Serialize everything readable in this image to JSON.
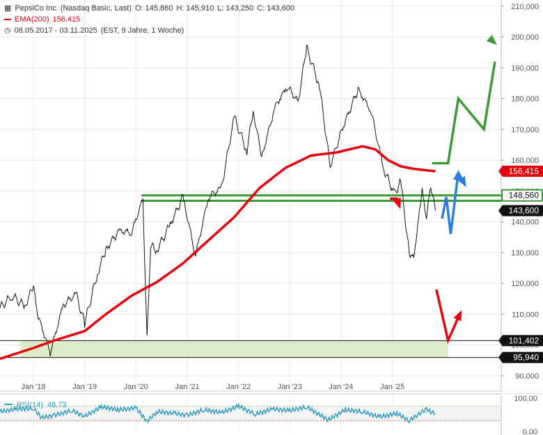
{
  "header": {
    "title": "PepsiCo Inc. (Nasdaq Basic, Last)",
    "open": "O: 145,860",
    "high": "H: 145,910",
    "low": "L: 143,250",
    "close": "C: 143,600",
    "ema_name": "EMA(200)",
    "ema_value": "156,415",
    "range": "08.05.2017 - 03.11.2025",
    "range_info": "(EST, 9 Jahre, 1 Woche)"
  },
  "colors": {
    "price": "#111111",
    "ema": "#e8000f",
    "green": "#3a9a35",
    "blue": "#2a7fde",
    "red_arrow": "#e8000f",
    "zone": "#dcebc9",
    "rsi": "#2d9bc4"
  },
  "chart_data": {
    "type": "line",
    "yrange": [
      85000,
      212000
    ],
    "yticks": [
      90000,
      100000,
      110000,
      120000,
      130000,
      140000,
      150000,
      160000,
      170000,
      180000,
      190000,
      200000,
      210000
    ],
    "ytick_labels": [
      "90,000",
      "100,000",
      "110,000",
      "120,000",
      "130,000",
      "140,000",
      "150,000",
      "160,000",
      "170,000",
      "180,000",
      "190,000",
      "200,000",
      "210,000"
    ],
    "xticks": [
      "2018-01-01",
      "2019-01-01",
      "2020-01-01",
      "2021-01-01",
      "2022-01-01",
      "2023-01-01",
      "2024-01-01",
      "2025-01-01"
    ],
    "xtick_labels": [
      "Jan '18",
      "Jan '19",
      "Jan '20",
      "Jan '21",
      "Jan '22",
      "Jan '23",
      "Jan '24",
      "Jan '25"
    ],
    "price_series": {
      "name": "PepsiCo Inc.",
      "points": [
        [
          "2017-05-08",
          112000
        ],
        [
          "2017-08-01",
          116000
        ],
        [
          "2017-11-01",
          112500
        ],
        [
          "2018-01-01",
          119000
        ],
        [
          "2018-02-05",
          109000
        ],
        [
          "2018-05-01",
          97500
        ],
        [
          "2018-08-01",
          113000
        ],
        [
          "2018-11-01",
          116500
        ],
        [
          "2019-01-01",
          107000
        ],
        [
          "2019-04-01",
          123000
        ],
        [
          "2019-06-01",
          131000
        ],
        [
          "2019-09-01",
          137000
        ],
        [
          "2019-12-01",
          136500
        ],
        [
          "2020-02-20",
          147500
        ],
        [
          "2020-03-20",
          101500
        ],
        [
          "2020-04-15",
          132000
        ],
        [
          "2020-06-01",
          131000
        ],
        [
          "2020-09-01",
          139000
        ],
        [
          "2020-12-01",
          148000
        ],
        [
          "2021-03-01",
          129000
        ],
        [
          "2021-06-01",
          148000
        ],
        [
          "2021-09-01",
          151000
        ],
        [
          "2021-12-01",
          174000
        ],
        [
          "2022-03-01",
          163000
        ],
        [
          "2022-04-15",
          176000
        ],
        [
          "2022-06-15",
          161000
        ],
        [
          "2022-09-15",
          177000
        ],
        [
          "2022-12-15",
          184000
        ],
        [
          "2023-03-01",
          179000
        ],
        [
          "2023-05-01",
          196500
        ],
        [
          "2023-08-01",
          184000
        ],
        [
          "2023-10-15",
          158000
        ],
        [
          "2024-01-01",
          169000
        ],
        [
          "2024-05-01",
          183000
        ],
        [
          "2024-08-01",
          176000
        ],
        [
          "2024-11-01",
          157000
        ],
        [
          "2025-01-15",
          149000
        ],
        [
          "2025-03-01",
          153000
        ],
        [
          "2025-05-01",
          130000
        ],
        [
          "2025-06-01",
          128000
        ],
        [
          "2025-08-01",
          150000
        ],
        [
          "2025-09-01",
          141000
        ],
        [
          "2025-10-01",
          152000
        ],
        [
          "2025-11-03",
          143600
        ]
      ]
    },
    "ema_series": {
      "name": "EMA(200)",
      "points": [
        [
          "2017-05-08",
          95500
        ],
        [
          "2018-01-01",
          99000
        ],
        [
          "2018-06-01",
          101500
        ],
        [
          "2019-01-01",
          104500
        ],
        [
          "2019-06-01",
          110000
        ],
        [
          "2019-12-01",
          116000
        ],
        [
          "2020-06-01",
          120500
        ],
        [
          "2020-12-01",
          126500
        ],
        [
          "2021-06-01",
          134000
        ],
        [
          "2021-12-01",
          141500
        ],
        [
          "2022-06-01",
          151000
        ],
        [
          "2022-12-01",
          157500
        ],
        [
          "2023-06-01",
          161500
        ],
        [
          "2023-12-01",
          162500
        ],
        [
          "2024-06-01",
          164500
        ],
        [
          "2024-09-01",
          163500
        ],
        [
          "2024-12-01",
          160000
        ],
        [
          "2025-03-01",
          158000
        ],
        [
          "2025-06-01",
          157200
        ],
        [
          "2025-09-01",
          156700
        ],
        [
          "2025-11-03",
          156415
        ]
      ]
    },
    "horizontal_levels": [
      {
        "value": 148560,
        "label": "148,560",
        "style": "green",
        "start": "2020-02-10"
      },
      {
        "value": 146800,
        "style": "green",
        "start": "2020-02-10"
      },
      {
        "value": 101402,
        "label": "101,402",
        "style": "black",
        "start": "2017-05-08"
      },
      {
        "value": 95940,
        "label": "95,940",
        "style": "black",
        "start": "2017-05-08"
      }
    ],
    "support_zone": {
      "from": 95940,
      "to": 101402,
      "start": "2017-10-01",
      "end": "2026-02-01"
    },
    "price_badges": [
      {
        "value": 156415,
        "label": "156,415",
        "style": "red"
      },
      {
        "value": 148560,
        "label": "148,560",
        "style": "green"
      },
      {
        "value": 143600,
        "label": "143,600",
        "style": "black"
      }
    ],
    "scenario_paths": [
      {
        "color": "green",
        "points": [
          [
            "2025-10-10",
            159000
          ],
          [
            "2026-02-01",
            159000
          ],
          [
            "2026-04-15",
            180000
          ],
          [
            "2026-10-15",
            170000
          ],
          [
            "2027-01-01",
            192000
          ]
        ],
        "arrow": false
      },
      {
        "color": "green",
        "points": [
          [
            "2026-12-20",
            198500
          ],
          [
            "2027-01-01",
            198000
          ]
        ],
        "arrow": true
      },
      {
        "color": "blue",
        "points": [
          [
            "2025-12-20",
            141000
          ],
          [
            "2026-01-20",
            148000
          ],
          [
            "2026-02-20",
            136000
          ],
          [
            "2026-04-15",
            156000
          ]
        ],
        "arrow": true
      },
      {
        "color": "blue",
        "points": [
          [
            "2026-04-15",
            156000
          ],
          [
            "2026-06-01",
            152000
          ]
        ],
        "arrow": true
      },
      {
        "color": "red_arrow",
        "points": [
          [
            "2024-12-15",
            147500
          ],
          [
            "2025-02-01",
            147500
          ],
          [
            "2025-02-20",
            145000
          ]
        ],
        "arrow": true
      },
      {
        "color": "red_arrow",
        "points": [
          [
            "2025-11-10",
            118000
          ],
          [
            "2026-02-01",
            101500
          ],
          [
            "2026-05-01",
            110500
          ]
        ],
        "arrow": true
      }
    ],
    "rsi": {
      "name": "RSI(14)",
      "value": "48,73",
      "yrange": [
        0,
        100
      ],
      "ytick_labels": [
        "100,00",
        "0,00"
      ],
      "bands": [
        30,
        70
      ],
      "points": [
        [
          "2017-05-08",
          55
        ],
        [
          "2017-09-01",
          62
        ],
        [
          "2018-01-01",
          64
        ],
        [
          "2018-03-01",
          38
        ],
        [
          "2018-06-01",
          45
        ],
        [
          "2018-10-01",
          58
        ],
        [
          "2019-01-01",
          42
        ],
        [
          "2019-05-01",
          68
        ],
        [
          "2019-09-01",
          60
        ],
        [
          "2020-01-01",
          65
        ],
        [
          "2020-03-20",
          28
        ],
        [
          "2020-06-01",
          55
        ],
        [
          "2020-10-01",
          50
        ],
        [
          "2021-01-01",
          45
        ],
        [
          "2021-05-01",
          60
        ],
        [
          "2021-09-01",
          52
        ],
        [
          "2022-01-01",
          70
        ],
        [
          "2022-05-01",
          48
        ],
        [
          "2022-09-01",
          62
        ],
        [
          "2023-01-01",
          58
        ],
        [
          "2023-05-01",
          68
        ],
        [
          "2023-10-01",
          32
        ],
        [
          "2024-02-01",
          60
        ],
        [
          "2024-06-01",
          55
        ],
        [
          "2024-10-01",
          40
        ],
        [
          "2025-02-01",
          50
        ],
        [
          "2025-05-01",
          30
        ],
        [
          "2025-07-01",
          46
        ],
        [
          "2025-09-01",
          62
        ],
        [
          "2025-10-01",
          54
        ],
        [
          "2025-11-03",
          48.73
        ]
      ]
    }
  }
}
